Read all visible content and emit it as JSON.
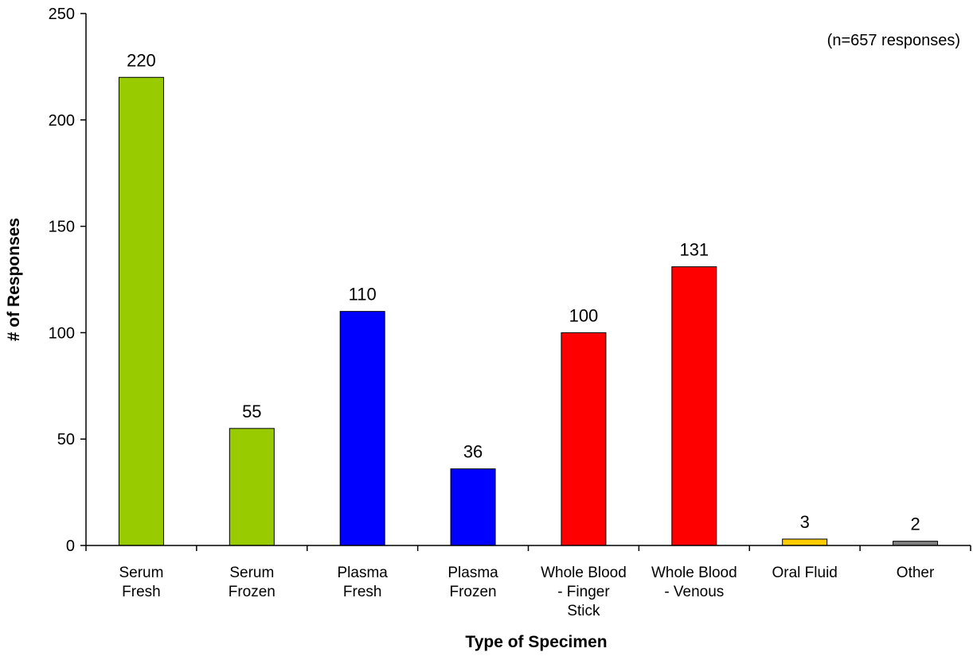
{
  "chart_data": {
    "type": "bar",
    "categories": [
      [
        "Serum",
        "Fresh"
      ],
      [
        "Serum",
        "Frozen"
      ],
      [
        "Plasma",
        "Fresh"
      ],
      [
        "Plasma",
        "Frozen"
      ],
      [
        "Whole Blood",
        "- Finger",
        "Stick"
      ],
      [
        "Whole Blood",
        "- Venous"
      ],
      [
        "Oral Fluid"
      ],
      [
        "Other"
      ]
    ],
    "values": [
      220,
      55,
      110,
      36,
      100,
      131,
      3,
      2
    ],
    "value_labels": [
      "220",
      "55",
      "110",
      "36",
      "100",
      "131",
      "3",
      "2"
    ],
    "bar_colors": [
      "#99CC00",
      "#99CC00",
      "#0000FF",
      "#0000FF",
      "#FF0000",
      "#FF0000",
      "#FFCC00",
      "#808080"
    ],
    "xlabel": "Type of Specimen",
    "ylabel": "# of Responses",
    "ylim": [
      0,
      250
    ],
    "yticks": [
      "0",
      "50",
      "100",
      "150",
      "200",
      "250"
    ],
    "annotation": "(n=657 responses)",
    "grid": false,
    "legend": "none"
  }
}
